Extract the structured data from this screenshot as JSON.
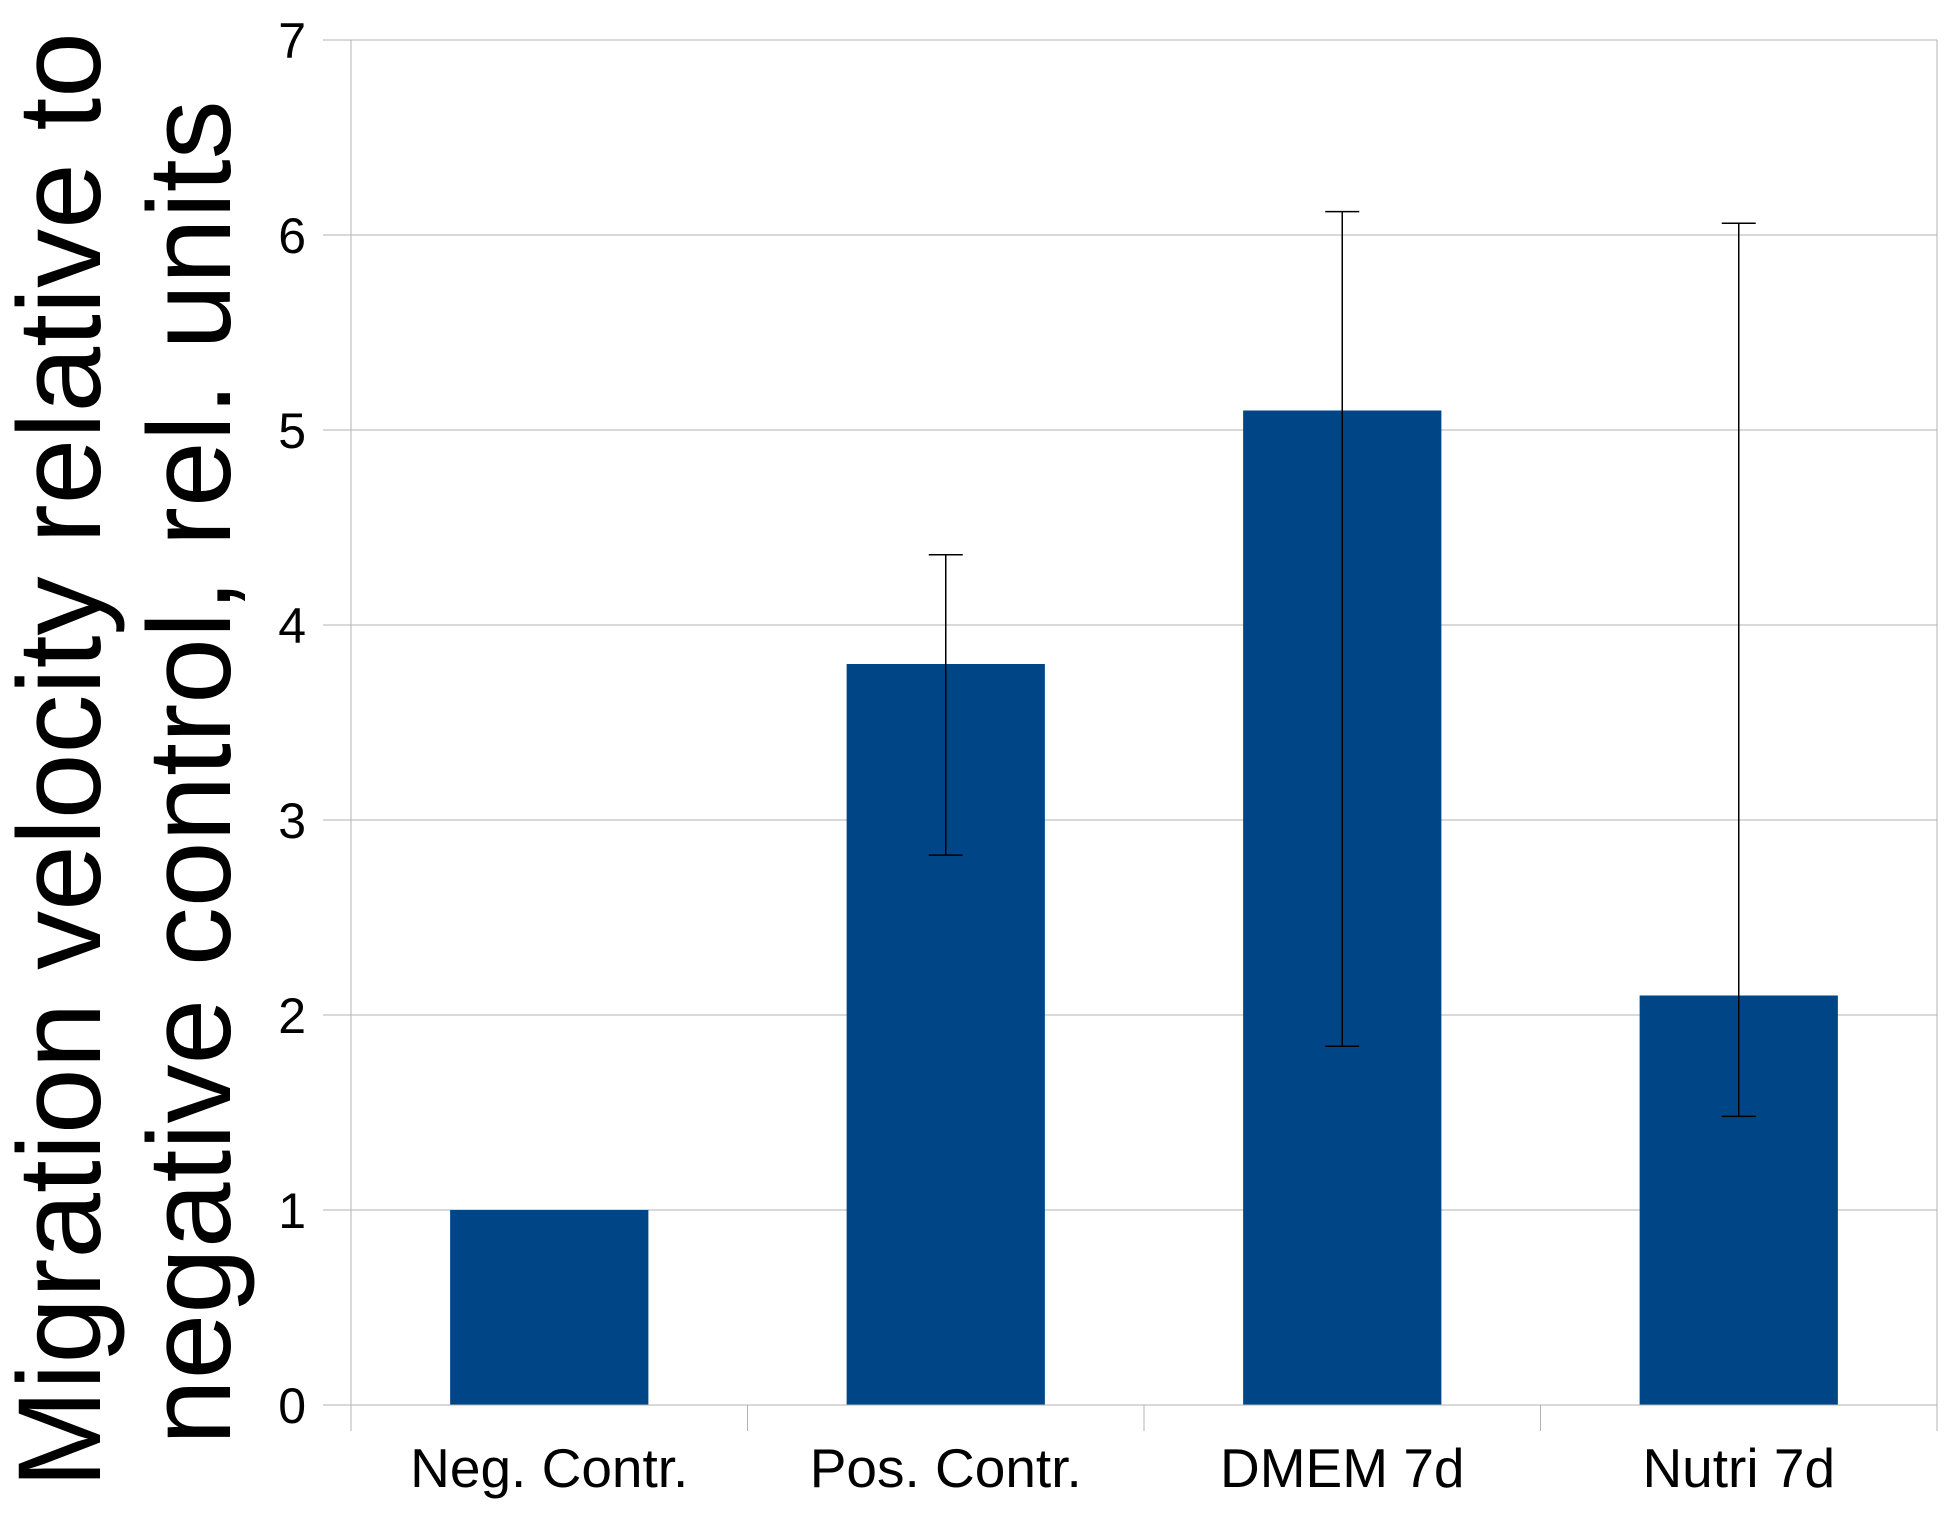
{
  "chart_data": {
    "type": "bar",
    "title": "",
    "xlabel": "",
    "ylabel": "Migration velocity relative to negative control, rel. units",
    "ylabel_lines": [
      "Migration velocity relative to",
      "negative control, rel. units"
    ],
    "categories": [
      "Neg. Contr.",
      "Pos. Contr.",
      "DMEM 7d",
      "Nutri 7d"
    ],
    "values": [
      1.0,
      3.8,
      5.1,
      2.1
    ],
    "error_low": [
      1.0,
      2.82,
      1.84,
      1.48
    ],
    "error_high": [
      1.0,
      4.36,
      6.12,
      6.06
    ],
    "ylim": [
      0,
      7
    ],
    "yticks": [
      "0",
      "1",
      "2",
      "3",
      "4",
      "5",
      "6",
      "7"
    ],
    "grid": true,
    "legend": "none",
    "bar_color": "#004586"
  }
}
